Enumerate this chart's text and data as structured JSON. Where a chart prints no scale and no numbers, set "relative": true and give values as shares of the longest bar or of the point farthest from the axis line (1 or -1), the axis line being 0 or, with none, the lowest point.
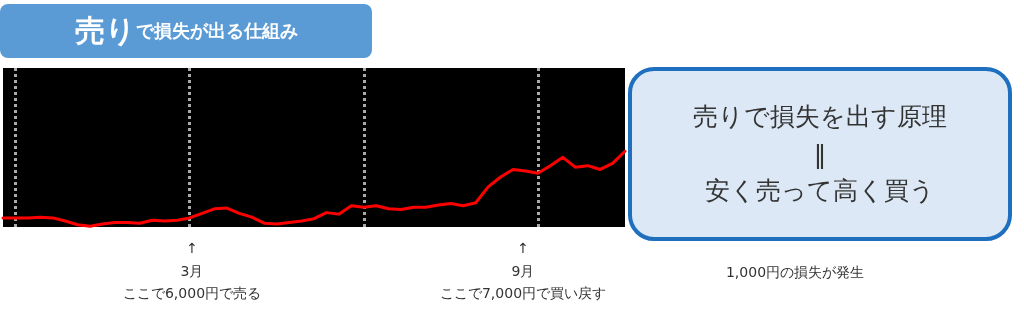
{
  "chart_data": {
    "type": "line",
    "title": "売りで損失が出る仕組み",
    "relative": true,
    "grid": "x",
    "marker": "none",
    "line_style": "solid",
    "categories": [
      null,
      null,
      null,
      null,
      null,
      null,
      null,
      null,
      null,
      null,
      null,
      null,
      null,
      null,
      null,
      null,
      null,
      null,
      null,
      null,
      null,
      null,
      null,
      null,
      null,
      null,
      null,
      null,
      null,
      null,
      null,
      null,
      null,
      null,
      null,
      null,
      null,
      null,
      null,
      null,
      null,
      null,
      null,
      null,
      null,
      null,
      null,
      null,
      null,
      null,
      null
    ],
    "series": [
      {
        "color": "#ff0000",
        "values": [
          0.12,
          0.12,
          0.12,
          0.13,
          0.12,
          0.08,
          0.03,
          0.01,
          0.04,
          0.06,
          0.06,
          0.05,
          0.09,
          0.08,
          0.09,
          0.12,
          0.18,
          0.24,
          0.25,
          0.18,
          0.13,
          0.05,
          0.04,
          0.06,
          0.08,
          0.11,
          0.19,
          0.17,
          0.28,
          0.26,
          0.28,
          0.24,
          0.23,
          0.26,
          0.26,
          0.29,
          0.31,
          0.28,
          0.32,
          0.53,
          0.66,
          0.76,
          0.74,
          0.71,
          0.81,
          0.92,
          0.79,
          0.81,
          0.76,
          0.84,
          1.0
        ]
      }
    ],
    "annotations": [
      "↑",
      "3月",
      "ここで6,000円で売る",
      "↑",
      "9月",
      "ここで7,000円で買い戻す",
      "1,000円の損失が発生",
      "売りで損失を出す原理",
      "‖",
      "安く売って高く買う"
    ]
  }
}
